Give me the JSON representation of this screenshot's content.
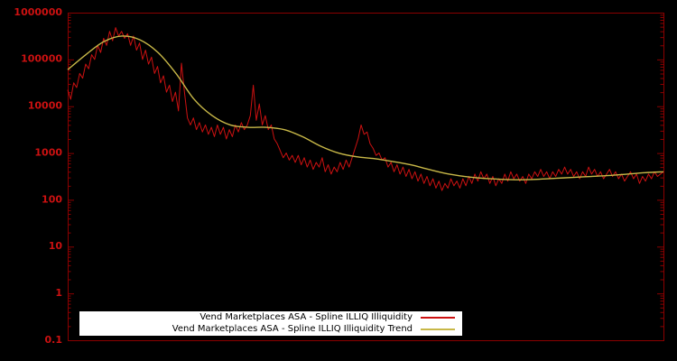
{
  "chart": {
    "background": "#000000",
    "axis_color": "#8b0000",
    "tick_label_color": "#cc1111"
  },
  "chart_data": {
    "type": "line",
    "title": "",
    "xlabel": "",
    "ylabel": "",
    "ylog": true,
    "ylim": [
      0.1,
      1000000
    ],
    "yticks": [
      "1000000",
      "100000",
      "10000",
      "1000",
      "100",
      "10",
      "1",
      "0.1"
    ],
    "grid": false,
    "legend_position": "bottom-center",
    "series": [
      {
        "name": "Vend Marketplaces ASA - Spline ILLIQ Illiquidity",
        "color": "#cc1111",
        "smooth": false,
        "width": 1,
        "values": [
          22400,
          14100,
          31600,
          25100,
          50100,
          39800,
          79400,
          63100,
          126000,
          100000,
          200000,
          141000,
          282000,
          200000,
          398000,
          251000,
          479000,
          316000,
          398000,
          282000,
          355000,
          200000,
          316000,
          158000,
          224000,
          100000,
          158000,
          79400,
          112000,
          50100,
          70800,
          31600,
          44700,
          20000,
          28200,
          12600,
          20000,
          7940,
          83200,
          20000,
          5620,
          3980,
          5620,
          3160,
          4470,
          2820,
          3980,
          2510,
          3550,
          2240,
          3980,
          2510,
          3550,
          2000,
          3160,
          2240,
          3980,
          2820,
          4470,
          3160,
          3980,
          6310,
          28200,
          5010,
          11200,
          3980,
          6310,
          3160,
          3980,
          2000,
          1580,
          1120,
          794,
          1000,
          708,
          891,
          631,
          891,
          562,
          794,
          501,
          708,
          447,
          631,
          501,
          794,
          398,
          562,
          355,
          501,
          398,
          631,
          447,
          708,
          501,
          794,
          1260,
          2000,
          3980,
          2510,
          2820,
          1580,
          1260,
          891,
          1000,
          708,
          794,
          501,
          631,
          398,
          562,
          355,
          501,
          316,
          447,
          282,
          398,
          251,
          355,
          224,
          316,
          200,
          282,
          178,
          251,
          158,
          224,
          178,
          282,
          200,
          251,
          178,
          282,
          200,
          316,
          224,
          355,
          251,
          398,
          282,
          355,
          224,
          316,
          200,
          282,
          224,
          355,
          251,
          398,
          282,
          355,
          251,
          316,
          224,
          355,
          282,
          398,
          316,
          447,
          316,
          398,
          282,
          398,
          316,
          447,
          355,
          501,
          355,
          447,
          316,
          398,
          282,
          398,
          316,
          501,
          355,
          447,
          316,
          398,
          282,
          355,
          447,
          316,
          398,
          282,
          355,
          251,
          316,
          398,
          282,
          355,
          224,
          316,
          251,
          355,
          282,
          398,
          316,
          355,
          398
        ]
      },
      {
        "name": "Vend Marketplaces ASA - Spline ILLIQ Illiquidity Trend",
        "color": "#c8b848",
        "smooth": true,
        "width": 1.4,
        "values": [
          60300,
          126000,
          240000,
          316000,
          263000,
          141000,
          50100,
          14100,
          6310,
          3980,
          3550,
          3550,
          3160,
          2240,
          1410,
          1000,
          832,
          759,
          661,
          562,
          447,
          363,
          316,
          288,
          275,
          269,
          275,
          288,
          302,
          316,
          331,
          355,
          380,
          398
        ]
      }
    ]
  }
}
